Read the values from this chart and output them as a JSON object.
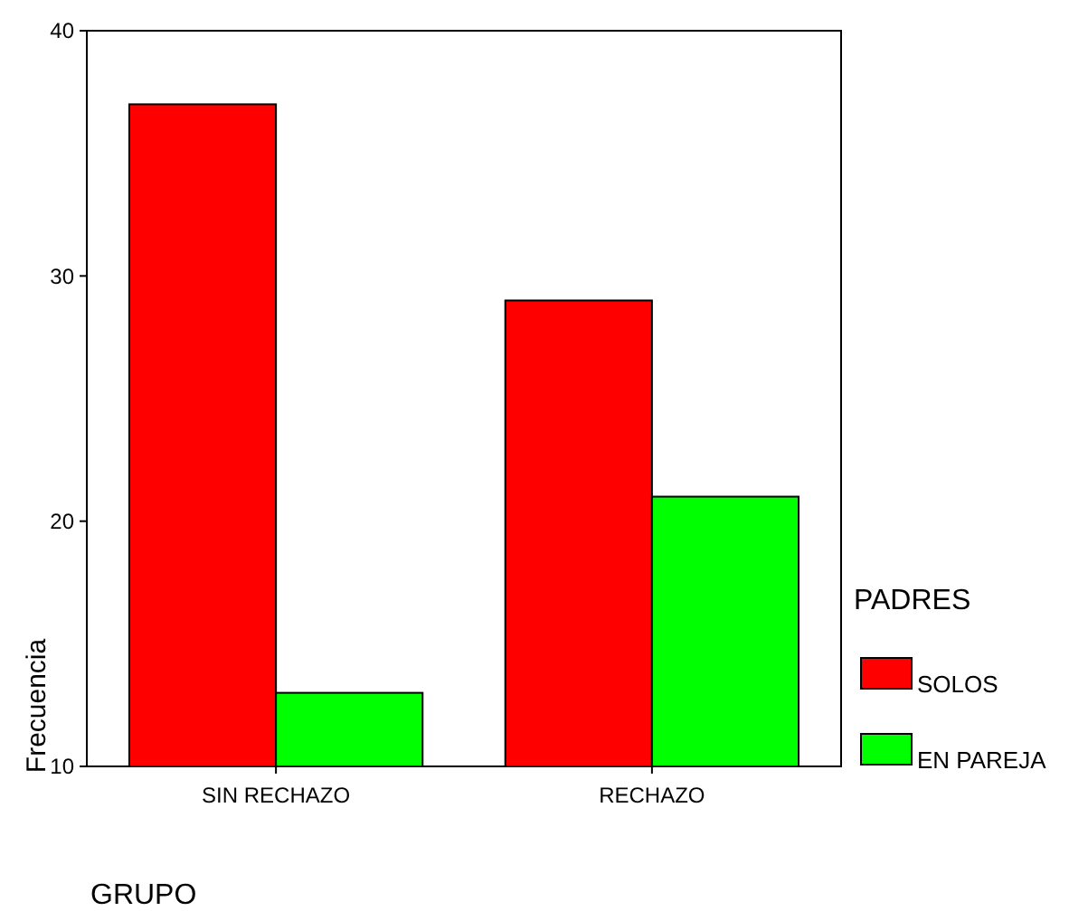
{
  "chart_data": {
    "type": "bar",
    "xlabel": "GRUPO",
    "ylabel": "Frecuencia",
    "legend_title": "PADRES",
    "categories": [
      "SIN RECHAZO",
      "RECHAZO"
    ],
    "series": [
      {
        "name": "SOLOS",
        "color": "#ff0000",
        "values": [
          37,
          29
        ]
      },
      {
        "name": "EN PAREJA",
        "color": "#00ff00",
        "values": [
          13,
          21
        ]
      }
    ],
    "ylim": [
      10,
      40
    ],
    "yticks": [
      10,
      20,
      30,
      40
    ],
    "grid": false,
    "legend": "right"
  }
}
